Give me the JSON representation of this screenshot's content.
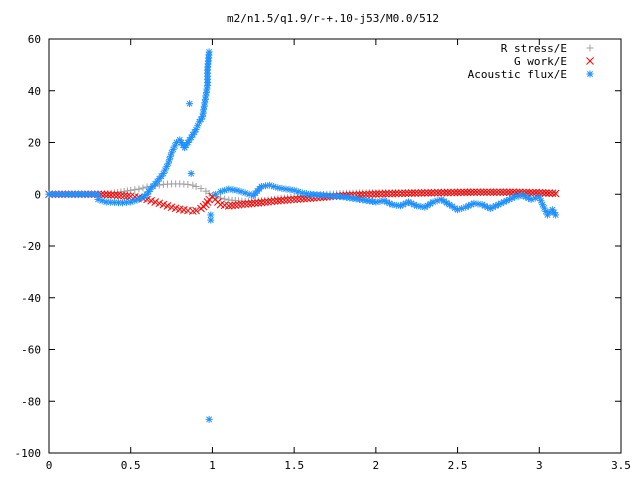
{
  "chart_data": {
    "type": "scatter",
    "title": "m2/n1.5/q1.9/r-+.10-j53/M0.0/512",
    "xlabel": "",
    "ylabel": "",
    "xlim": [
      0,
      3.5
    ],
    "ylim": [
      -100,
      60
    ],
    "xticks": [
      "0",
      "0.5",
      "1",
      "1.5",
      "2",
      "2.5",
      "3",
      "3.5"
    ],
    "yticks": [
      "60",
      "40",
      "20",
      "0",
      "-20",
      "-40",
      "-60",
      "-80",
      "-100"
    ],
    "grid": false,
    "legend_position": "top-right",
    "series": [
      {
        "name": "R stress/E",
        "marker": "+",
        "color": "#a0a0a0",
        "points": [
          [
            0,
            0
          ],
          [
            0.1,
            0
          ],
          [
            0.2,
            0
          ],
          [
            0.3,
            0
          ],
          [
            0.4,
            0.5
          ],
          [
            0.5,
            1.5
          ],
          [
            0.55,
            2
          ],
          [
            0.6,
            2.8
          ],
          [
            0.65,
            3.3
          ],
          [
            0.7,
            3.8
          ],
          [
            0.75,
            4
          ],
          [
            0.8,
            4
          ],
          [
            0.85,
            3.8
          ],
          [
            0.88,
            3.5
          ],
          [
            0.9,
            3
          ],
          [
            0.93,
            2.2
          ],
          [
            0.96,
            1.2
          ],
          [
            1.0,
            -0.5
          ],
          [
            1.05,
            -1.5
          ],
          [
            1.1,
            -2.2
          ],
          [
            1.2,
            -2.8
          ],
          [
            1.3,
            -2.5
          ],
          [
            1.4,
            -1.8
          ],
          [
            1.5,
            -1
          ],
          [
            1.6,
            -0.5
          ],
          [
            1.7,
            0
          ],
          [
            1.8,
            0.3
          ],
          [
            1.9,
            0.5
          ],
          [
            2.0,
            0.6
          ],
          [
            2.2,
            0.7
          ],
          [
            2.4,
            0.8
          ],
          [
            2.6,
            0.8
          ],
          [
            2.8,
            0.7
          ],
          [
            3.0,
            0.6
          ],
          [
            3.1,
            0.5
          ]
        ]
      },
      {
        "name": "G work/E",
        "marker": "x",
        "color": "#ff0000",
        "points": [
          [
            0,
            0
          ],
          [
            0.1,
            0
          ],
          [
            0.2,
            0
          ],
          [
            0.3,
            0
          ],
          [
            0.4,
            -0.3
          ],
          [
            0.5,
            -0.8
          ],
          [
            0.55,
            -1.2
          ],
          [
            0.6,
            -2
          ],
          [
            0.65,
            -3
          ],
          [
            0.7,
            -4
          ],
          [
            0.75,
            -5
          ],
          [
            0.8,
            -5.8
          ],
          [
            0.85,
            -6.3
          ],
          [
            0.88,
            -6.5
          ],
          [
            0.9,
            -6.3
          ],
          [
            0.93,
            -5.5
          ],
          [
            0.96,
            -4
          ],
          [
            0.98,
            -2
          ],
          [
            1.0,
            -1
          ],
          [
            1.05,
            -4
          ],
          [
            1.1,
            -4.5
          ],
          [
            1.2,
            -3.8
          ],
          [
            1.3,
            -3.2
          ],
          [
            1.4,
            -2.5
          ],
          [
            1.5,
            -2
          ],
          [
            1.6,
            -1.5
          ],
          [
            1.7,
            -1
          ],
          [
            1.8,
            -0.5
          ],
          [
            1.9,
            -0.2
          ],
          [
            2.0,
            0.1
          ],
          [
            2.2,
            0.4
          ],
          [
            2.4,
            0.6
          ],
          [
            2.6,
            0.8
          ],
          [
            2.8,
            0.8
          ],
          [
            3.0,
            0.6
          ],
          [
            3.1,
            0.3
          ]
        ]
      },
      {
        "name": "Acoustic flux/E",
        "marker": "*",
        "color": "#1e90ff",
        "points": [
          [
            0,
            0
          ],
          [
            0.1,
            0
          ],
          [
            0.2,
            0
          ],
          [
            0.3,
            0
          ],
          [
            0.3,
            -2
          ],
          [
            0.35,
            -3
          ],
          [
            0.4,
            -3.2
          ],
          [
            0.45,
            -3.3
          ],
          [
            0.5,
            -3
          ],
          [
            0.55,
            -2
          ],
          [
            0.6,
            0
          ],
          [
            0.62,
            2
          ],
          [
            0.65,
            4
          ],
          [
            0.7,
            8
          ],
          [
            0.73,
            12
          ],
          [
            0.75,
            16
          ],
          [
            0.78,
            20
          ],
          [
            0.8,
            21
          ],
          [
            0.83,
            18
          ],
          [
            0.85,
            20
          ],
          [
            0.87,
            22
          ],
          [
            0.9,
            25
          ],
          [
            0.92,
            28
          ],
          [
            0.94,
            30
          ],
          [
            0.95,
            34
          ],
          [
            0.96,
            38
          ],
          [
            0.97,
            42
          ],
          [
            0.97,
            48
          ],
          [
            0.98,
            55
          ],
          [
            0.86,
            35
          ],
          [
            0.87,
            8
          ],
          [
            0.99,
            -8
          ],
          [
            0.99,
            -10
          ],
          [
            0.98,
            -87
          ],
          [
            1.02,
            0
          ],
          [
            1.05,
            1
          ],
          [
            1.1,
            2
          ],
          [
            1.15,
            1.5
          ],
          [
            1.2,
            0.5
          ],
          [
            1.25,
            -0.5
          ],
          [
            1.3,
            3
          ],
          [
            1.35,
            3.5
          ],
          [
            1.4,
            2.5
          ],
          [
            1.45,
            2
          ],
          [
            1.5,
            1.5
          ],
          [
            1.55,
            0.5
          ],
          [
            1.6,
            0
          ],
          [
            1.7,
            -0.5
          ],
          [
            1.8,
            -1
          ],
          [
            1.9,
            -2
          ],
          [
            2.0,
            -3
          ],
          [
            2.05,
            -2.5
          ],
          [
            2.1,
            -4
          ],
          [
            2.15,
            -4.5
          ],
          [
            2.2,
            -3
          ],
          [
            2.25,
            -4.5
          ],
          [
            2.3,
            -5
          ],
          [
            2.35,
            -3
          ],
          [
            2.4,
            -2
          ],
          [
            2.45,
            -4
          ],
          [
            2.5,
            -6
          ],
          [
            2.55,
            -5
          ],
          [
            2.6,
            -3.5
          ],
          [
            2.65,
            -4
          ],
          [
            2.7,
            -5.5
          ],
          [
            2.75,
            -4
          ],
          [
            2.8,
            -2.5
          ],
          [
            2.85,
            -1
          ],
          [
            2.9,
            -0.5
          ],
          [
            2.95,
            -2
          ],
          [
            3.0,
            -1
          ],
          [
            3.02,
            -4
          ],
          [
            3.05,
            -8
          ],
          [
            3.08,
            -6
          ],
          [
            3.1,
            -8
          ]
        ]
      }
    ]
  }
}
